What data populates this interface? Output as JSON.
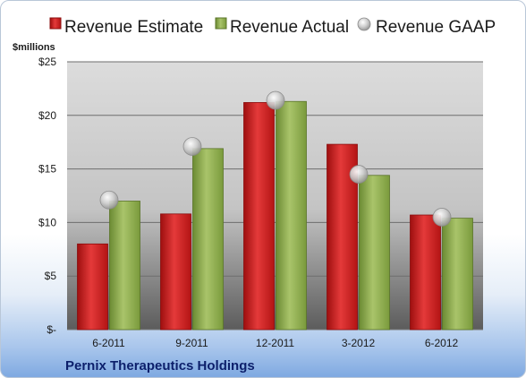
{
  "chart_data": {
    "type": "bar",
    "unit_label": "$millions",
    "company": "Pernix Therapeutics Holdings",
    "categories": [
      "6-2011",
      "9-2011",
      "12-2011",
      "3-2012",
      "6-2012"
    ],
    "series": [
      {
        "name": "Revenue Estimate",
        "kind": "bar",
        "color": "#d21f1f",
        "values": [
          8.0,
          10.8,
          21.2,
          17.3,
          10.7
        ]
      },
      {
        "name": "Revenue Actual",
        "kind": "bar",
        "color": "#8fae4f",
        "values": [
          12.0,
          16.9,
          21.3,
          14.4,
          10.4
        ]
      },
      {
        "name": "Revenue GAAP",
        "kind": "marker",
        "color": "#c8c8c8",
        "values": [
          12.1,
          17.1,
          21.4,
          14.5,
          10.5
        ]
      }
    ],
    "yticks": [
      "$-",
      "$5",
      "$10",
      "$15",
      "$20",
      "$25"
    ],
    "ylim": [
      0,
      25
    ],
    "grid": true,
    "legend_position": "top"
  }
}
